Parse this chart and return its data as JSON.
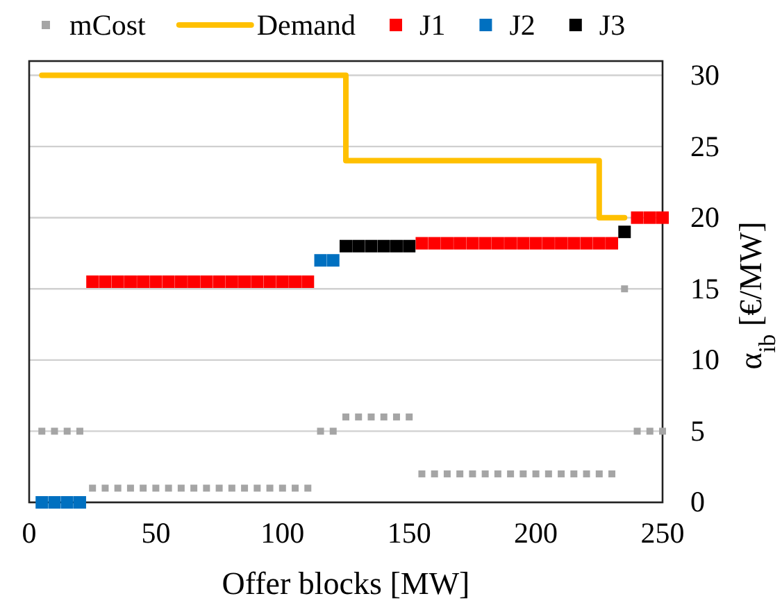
{
  "chart_data": {
    "type": "scatter",
    "xlabel": "Offer blocks [MW]",
    "ylabel": "α$_{ib}$ [€/MW]",
    "x": [
      5,
      10,
      15,
      20,
      25,
      30,
      35,
      40,
      45,
      50,
      55,
      60,
      65,
      70,
      75,
      80,
      85,
      90,
      95,
      100,
      105,
      110,
      115,
      120,
      125,
      130,
      135,
      140,
      145,
      150,
      155,
      160,
      165,
      170,
      175,
      180,
      185,
      190,
      195,
      200,
      205,
      210,
      215,
      220,
      225,
      230,
      235,
      240,
      245,
      250
    ],
    "series": [
      {
        "name": "mCost",
        "marker": "square",
        "color": "#a5a5a5",
        "values": [
          5,
          5,
          5,
          5,
          1,
          1,
          1,
          1,
          1,
          1,
          1,
          1,
          1,
          1,
          1,
          1,
          1,
          1,
          1,
          1,
          1,
          1,
          5,
          5,
          6,
          6,
          6,
          6,
          6,
          6,
          2,
          2,
          2,
          2,
          2,
          2,
          2,
          2,
          2,
          2,
          2,
          2,
          2,
          2,
          2,
          2,
          15,
          5,
          5,
          5
        ]
      },
      {
        "name": "Demand",
        "type": "step",
        "marker": "none",
        "color": "#ffc000",
        "x": [
          5,
          125,
          225,
          235
        ],
        "values": [
          30,
          24,
          20,
          20
        ]
      },
      {
        "name": "J1",
        "marker": "square",
        "color": "#ff0000",
        "values": [
          null,
          null,
          null,
          null,
          15.5,
          15.5,
          15.5,
          15.5,
          15.5,
          15.5,
          15.5,
          15.5,
          15.5,
          15.5,
          15.5,
          15.5,
          15.5,
          15.5,
          15.5,
          15.5,
          15.5,
          15.5,
          null,
          null,
          null,
          null,
          null,
          null,
          null,
          null,
          18.2,
          18.2,
          18.2,
          18.2,
          18.2,
          18.2,
          18.2,
          18.2,
          18.2,
          18.2,
          18.2,
          18.2,
          18.2,
          18.2,
          18.2,
          18.2,
          null,
          20,
          20,
          20
        ]
      },
      {
        "name": "J2",
        "marker": "square",
        "color": "#0070c0",
        "values": [
          0,
          0,
          0,
          0,
          null,
          null,
          null,
          null,
          null,
          null,
          null,
          null,
          null,
          null,
          null,
          null,
          null,
          null,
          null,
          null,
          null,
          null,
          17,
          17,
          null,
          null,
          null,
          null,
          null,
          null,
          null,
          null,
          null,
          null,
          null,
          null,
          null,
          null,
          null,
          null,
          null,
          null,
          null,
          null,
          null,
          null,
          null,
          null,
          null,
          null
        ]
      },
      {
        "name": "J3",
        "marker": "square",
        "color": "#000000",
        "values": [
          null,
          null,
          null,
          null,
          null,
          null,
          null,
          null,
          null,
          null,
          null,
          null,
          null,
          null,
          null,
          null,
          null,
          null,
          null,
          null,
          null,
          null,
          null,
          null,
          18,
          18,
          18,
          18,
          18,
          18,
          null,
          null,
          null,
          null,
          null,
          null,
          null,
          null,
          null,
          null,
          null,
          null,
          null,
          null,
          null,
          null,
          19,
          null,
          null,
          null
        ]
      }
    ],
    "xlim": [
      0,
      250
    ],
    "xticks": [
      0,
      50,
      100,
      150,
      200,
      250
    ],
    "ylim": [
      0,
      31
    ],
    "yticks": [
      0,
      5,
      10,
      15,
      20,
      25,
      30
    ],
    "grid": "y",
    "legend": "top"
  }
}
